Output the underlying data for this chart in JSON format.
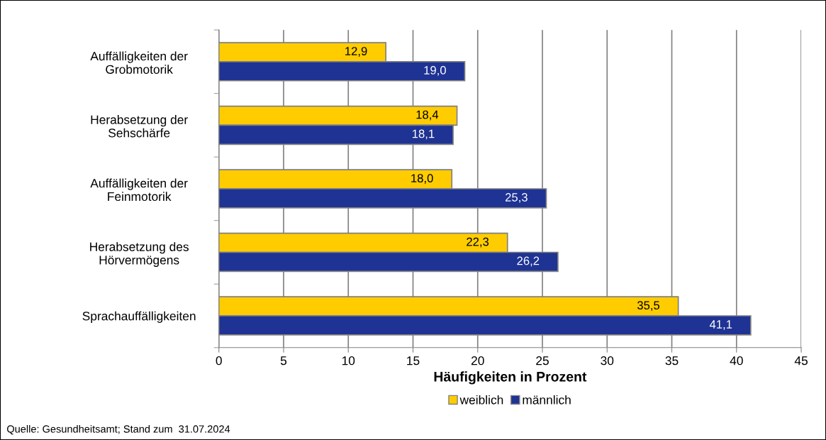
{
  "chart_data": {
    "type": "bar",
    "orientation": "horizontal",
    "categories": [
      "Auffälligkeiten der\nGrobmotorik",
      "Herabsetzung der\nSehschärfe",
      "Auffälligkeiten der\nFeinmotorik",
      "Herabsetzung des\nHörvermögens",
      "Sprachauffälligkeiten"
    ],
    "series": [
      {
        "name": "weiblich",
        "color": "#ffcc00",
        "values": [
          12.9,
          18.4,
          18.0,
          22.3,
          35.5
        ],
        "value_labels": [
          "12,9",
          "18,4",
          "18,0",
          "22,3",
          "35,5"
        ]
      },
      {
        "name": "männlich",
        "color": "#1f3394",
        "values": [
          19.0,
          18.1,
          25.3,
          26.2,
          41.1
        ],
        "value_labels": [
          "19,0",
          "18,1",
          "25,3",
          "26,2",
          "41,1"
        ]
      }
    ],
    "xlim": [
      0,
      45
    ],
    "xticks": [
      0,
      5,
      10,
      15,
      20,
      25,
      30,
      35,
      40,
      45
    ],
    "xlabel": "Häufigkeiten in Prozent",
    "grid": "x",
    "legend": "bottom",
    "annotations": [
      "Quelle: Gesundheitsamt; Stand zum  31.07.2024"
    ]
  }
}
